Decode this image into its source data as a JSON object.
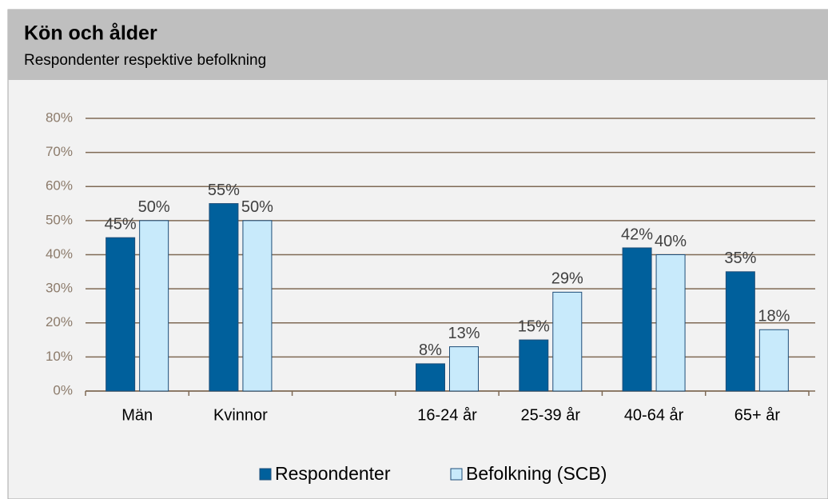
{
  "chart_data": {
    "type": "bar",
    "title": "Kön och ålder",
    "subtitle": "Respondenter respektive befolkning",
    "categories": [
      "Män",
      "Kvinnor",
      null,
      "16-24 år",
      "25-39 år",
      "40-64 år",
      "65+ år"
    ],
    "series": [
      {
        "name": "Respondenter",
        "color": "#00609c",
        "values": [
          45,
          55,
          null,
          8,
          15,
          42,
          35
        ],
        "value_labels": [
          "45%",
          "55%",
          null,
          "8%",
          "15%",
          "42%",
          "35%"
        ]
      },
      {
        "name": "Befolkning (SCB)",
        "color": "#c8eafb",
        "values": [
          50,
          50,
          null,
          13,
          29,
          40,
          18
        ],
        "value_labels": [
          "50%",
          "50%",
          null,
          "13%",
          "29%",
          "40%",
          "18%"
        ]
      }
    ],
    "ylim": [
      0,
      80
    ],
    "yticks": [
      {
        "value": 0,
        "label": "0%"
      },
      {
        "value": 10,
        "label": "10%"
      },
      {
        "value": 20,
        "label": "20%"
      },
      {
        "value": 30,
        "label": "30%"
      },
      {
        "value": 40,
        "label": "40%"
      },
      {
        "value": 50,
        "label": "50%"
      },
      {
        "value": 60,
        "label": "60%"
      },
      {
        "value": 70,
        "label": "70%"
      },
      {
        "value": 80,
        "label": "80%"
      }
    ],
    "grid": true,
    "legend": "bottom"
  }
}
